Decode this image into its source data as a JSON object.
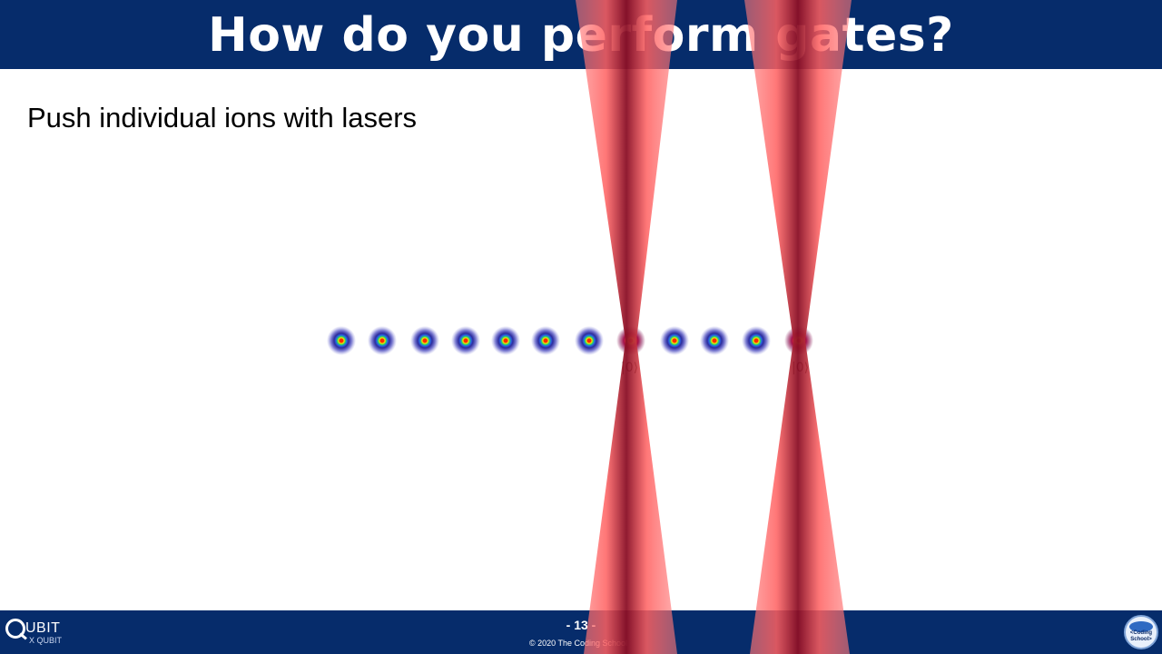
{
  "slide": {
    "title": "How do you perform gates?",
    "subtitle": "Push individual ions with lasers"
  },
  "diagram": {
    "ion_count": 12,
    "illuminated_ions": [
      8,
      12
    ],
    "state_labels": [
      "|0⟩",
      "|0⟩"
    ],
    "colors": {
      "laser": "#ff6b6b",
      "laser_core": "#8a0f26",
      "ion_core": "#ff2a00",
      "ion_halo": "#2d2d9c"
    }
  },
  "footer": {
    "page_number": "- 13 -",
    "copyright": "© 2020  The Coding School",
    "left_logo": {
      "text": "UBIT",
      "sub": "X QUBIT"
    },
    "right_logo": {
      "text": "<Coding School>"
    }
  },
  "colors": {
    "banner": "#062c6b",
    "background": "#ffffff"
  }
}
